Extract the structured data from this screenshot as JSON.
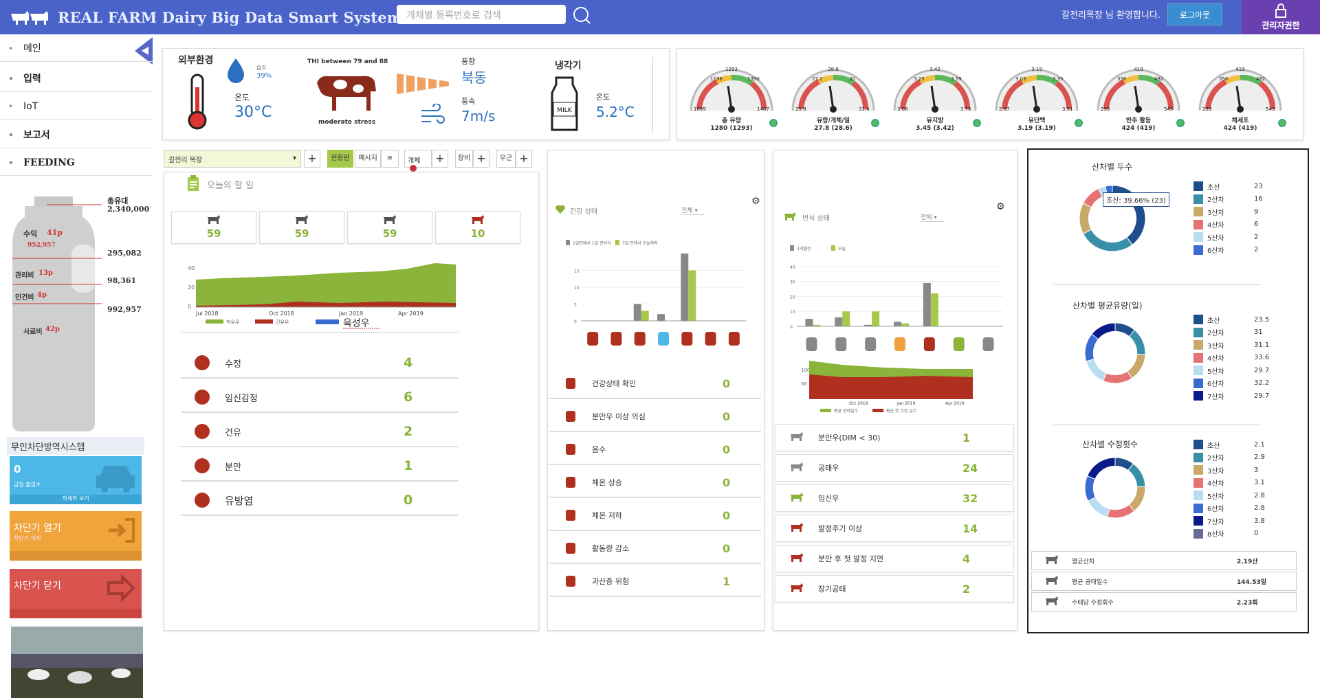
{
  "header": {
    "brand": "REAL FARM  Dairy Big Data Smart System",
    "search_placeholder": "개체별 등록번호로 검색",
    "welcome": "갈전리목장 님 환영합니다.",
    "logout": "로그아웃",
    "admin": "관리자권한"
  },
  "sidebar": {
    "items": [
      {
        "label": "메인"
      },
      {
        "label": "입력"
      },
      {
        "label": "IoT"
      },
      {
        "label": "보고서"
      },
      {
        "label": "FEEDING"
      }
    ]
  },
  "milk": {
    "total_label": "총유대",
    "total": "2,340,000",
    "income_label": "수익",
    "income_pct": "41p",
    "income_val": "952,957",
    "r1": "295,082",
    "mgmt_label": "관리비",
    "mgmt_pct": "13p",
    "r2": "98,361",
    "labor_label": "인건비",
    "labor_pct": "4p",
    "r3": "992,957",
    "feed_label": "사료비",
    "feed_pct": "42p"
  },
  "barrier": {
    "title": "무인차단방역시스템",
    "count": "0",
    "count_label": "금일 출입수",
    "detail": "자세히 보기",
    "open": "차단기 열기",
    "open_sub": "차단기 해제",
    "close": "차단기 닫기"
  },
  "env": {
    "title": "외부환경",
    "humidity_label": "습도",
    "humidity": "39%",
    "temp_label": "온도",
    "temp": "30°C",
    "thi": "THI between 79 and  88",
    "stress": "moderate stress",
    "wind_dir_label": "풍향",
    "wind_dir": "북동",
    "wind_speed_label": "풍속",
    "wind_speed": "7m/s",
    "cooler_title": "냉각기",
    "cooler_temp_label": "온도",
    "cooler_temp": "5.2°C"
  },
  "gauges": [
    {
      "label": "총 유량",
      "value": "1280 (1293)",
      "ticks": [
        "1196",
        "1293",
        "1390",
        "1099",
        "1487"
      ]
    },
    {
      "label": "유량/개체/일",
      "value": "27.8 (28.6)",
      "ticks": [
        "27.2",
        "28.6",
        "30",
        "25.9",
        "31.4"
      ]
    },
    {
      "label": "유지방",
      "value": "3.45 (3.42)",
      "ticks": [
        "3.25",
        "3.42",
        "3.59",
        "3.08",
        "3.76"
      ]
    },
    {
      "label": "유단백",
      "value": "3.19 (3.19)",
      "ticks": [
        "3.03",
        "3.19",
        "3.35",
        "2.87",
        "3.51"
      ]
    },
    {
      "label": "반추 활동",
      "value": "424 (419)",
      "ticks": [
        "356",
        "419",
        "482",
        "293",
        "545"
      ]
    },
    {
      "label": "체세포",
      "value": "424 (419)",
      "ticks": [
        "356",
        "419",
        "482",
        "293",
        "545"
      ]
    }
  ],
  "filters": {
    "farm": "갈전리 목장",
    "status": "현황판",
    "message": "메시지",
    "object": "개체",
    "equip": "장비",
    "cow": "우군"
  },
  "todo": {
    "title": "오늘의 할 일",
    "cards": [
      {
        "value": "59"
      },
      {
        "value": "59"
      },
      {
        "value": "59"
      },
      {
        "value": "10"
      }
    ],
    "x_ticks": [
      "Jul 2018",
      "Oct 2018",
      "Jan 2019",
      "Apr 2019"
    ],
    "legend1": "착유우",
    "legend2": "건유우",
    "legend3": "육성우",
    "y_ticks": [
      "40",
      "20",
      "0"
    ],
    "rows": [
      {
        "label": "수정",
        "value": "4"
      },
      {
        "label": "임신감정",
        "value": "6"
      },
      {
        "label": "건유",
        "value": "2"
      },
      {
        "label": "분만",
        "value": "1"
      },
      {
        "label": "유방염",
        "value": "0"
      }
    ]
  },
  "health": {
    "title": "건강 상태",
    "filter": "전체",
    "legend1": "1일전에서 1일 전이식",
    "legend2": "7일 전에서 오늘까지",
    "y_ticks": [
      "15",
      "10",
      "5",
      "0"
    ],
    "rows": [
      {
        "label": "건강상태 확인",
        "value": "0"
      },
      {
        "label": "분만우 이상 의심",
        "value": "0"
      },
      {
        "label": "음수",
        "value": "0"
      },
      {
        "label": "체온 상승",
        "value": "0"
      },
      {
        "label": "체온 저하",
        "value": "0"
      },
      {
        "label": "활동량 감소",
        "value": "0"
      },
      {
        "label": "과산증 위험",
        "value": "1"
      }
    ]
  },
  "breed": {
    "title": "번식 상태",
    "filter": "전체",
    "legend1": "3개월전",
    "legend2": "오늘",
    "y_ticks": [
      "40",
      "30",
      "20",
      "10",
      "0"
    ],
    "area_x": [
      "Oct 2018",
      "Jan 2019",
      "Apr 2019"
    ],
    "area_y": [
      "100",
      "50"
    ],
    "area_legend1": "평균 공태일수",
    "area_legend2": "평균 첫 수정 일수",
    "rows": [
      {
        "label": "분만우(DIM < 30)",
        "value": "1"
      },
      {
        "label": "공태우",
        "value": "24"
      },
      {
        "label": "임신우",
        "value": "32"
      },
      {
        "label": "발정주기 이상",
        "value": "14"
      },
      {
        "label": "분만 후 첫 발정 지연",
        "value": "4"
      },
      {
        "label": "장기공태",
        "value": "2"
      }
    ]
  },
  "parity": {
    "title1": "산차별 두수",
    "tooltip": "조산: 39.66% (23)",
    "title2": "산차별 평균유량(일)",
    "title3": "산차별 수정횟수",
    "l1": [
      {
        "label": "초산",
        "value": "23",
        "color": "#1f4e8c"
      },
      {
        "label": "2산차",
        "value": "16",
        "color": "#3a8fa8"
      },
      {
        "label": "3산차",
        "value": "9",
        "color": "#c9a86a"
      },
      {
        "label": "4산차",
        "value": "6",
        "color": "#e57373"
      },
      {
        "label": "5산차",
        "value": "2",
        "color": "#b8ddf0"
      },
      {
        "label": "6산차",
        "value": "2",
        "color": "#3a6bd0"
      }
    ],
    "l2": [
      {
        "label": "초산",
        "value": "23.5",
        "color": "#1f4e8c"
      },
      {
        "label": "2산차",
        "value": "31",
        "color": "#3a8fa8"
      },
      {
        "label": "3산차",
        "value": "31.1",
        "color": "#c9a86a"
      },
      {
        "label": "4산차",
        "value": "33.6",
        "color": "#e57373"
      },
      {
        "label": "5산차",
        "value": "29.7",
        "color": "#b8ddf0"
      },
      {
        "label": "6산차",
        "value": "32.2",
        "color": "#3a6bd0"
      },
      {
        "label": "7산차",
        "value": "29.7",
        "color": "#0a1a8a"
      }
    ],
    "l3": [
      {
        "label": "초산",
        "value": "2.1",
        "color": "#1f4e8c"
      },
      {
        "label": "2산차",
        "value": "2.9",
        "color": "#3a8fa8"
      },
      {
        "label": "3산차",
        "value": "3",
        "color": "#c9a86a"
      },
      {
        "label": "4산차",
        "value": "3.1",
        "color": "#e57373"
      },
      {
        "label": "5산차",
        "value": "2.8",
        "color": "#b8ddf0"
      },
      {
        "label": "6산차",
        "value": "2.8",
        "color": "#3a6bd0"
      },
      {
        "label": "7산차",
        "value": "3.8",
        "color": "#0a1a8a"
      },
      {
        "label": "8산차",
        "value": "0",
        "color": "#6a6a9a"
      }
    ],
    "stats": [
      {
        "label": "평균산차",
        "value": "2.19산"
      },
      {
        "label": "평균 공태일수",
        "value": "144.53일"
      },
      {
        "label": "수태당 수정회수",
        "value": "2.23회"
      }
    ]
  }
}
